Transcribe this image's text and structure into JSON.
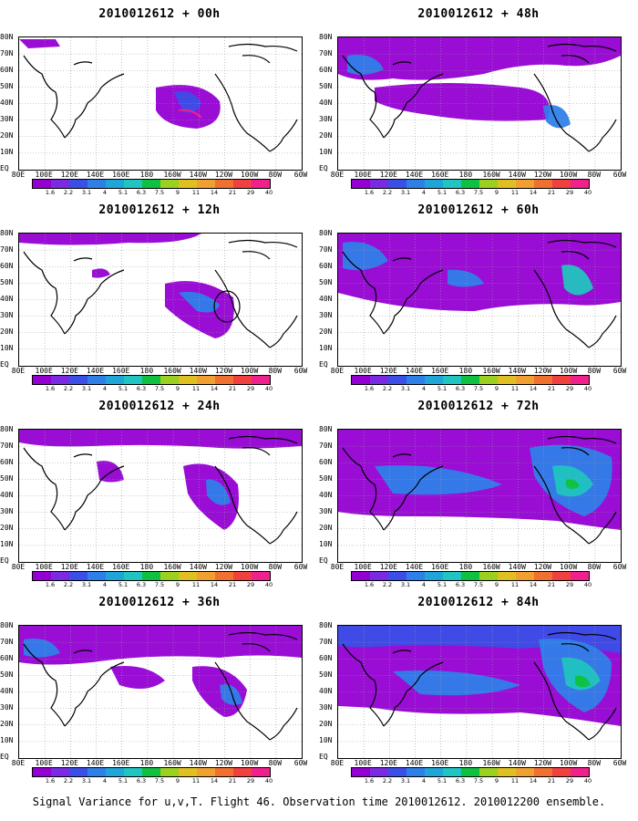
{
  "footer": "Signal Variance for u,v,T. Flight 46. Observation time 2010012612. 2010012200 ensemble.",
  "lat_labels": [
    "80N",
    "70N",
    "60N",
    "50N",
    "40N",
    "30N",
    "20N",
    "10N",
    "EQ"
  ],
  "lon_labels": [
    "80E",
    "100E",
    "120E",
    "140E",
    "160E",
    "180",
    "160W",
    "140W",
    "120W",
    "100W",
    "80W",
    "60W"
  ],
  "colorbar_labels": [
    "1.6",
    "2.2",
    "3.1",
    "4",
    "5.1",
    "6.3",
    "7.5",
    "9",
    "11",
    "14",
    "21",
    "29",
    "40"
  ],
  "colorbar_colors": [
    "#9400d3",
    "#7a2be2",
    "#3b4ee8",
    "#2f7fe9",
    "#1fa5d8",
    "#20c4c0",
    "#10c040",
    "#9cd020",
    "#e0c020",
    "#f0a030",
    "#f07030",
    "#f04040",
    "#f0208c"
  ],
  "panels": [
    {
      "id": "p0",
      "title": "2010012612 + 00h"
    },
    {
      "id": "p1",
      "title": "2010012612 + 48h"
    },
    {
      "id": "p2",
      "title": "2010012612 + 12h"
    },
    {
      "id": "p3",
      "title": "2010012612 + 60h"
    },
    {
      "id": "p4",
      "title": "2010012612 + 24h"
    },
    {
      "id": "p5",
      "title": "2010012612 + 72h"
    },
    {
      "id": "p6",
      "title": "2010012612 + 36h"
    },
    {
      "id": "p7",
      "title": "2010012612 + 84h"
    }
  ]
}
